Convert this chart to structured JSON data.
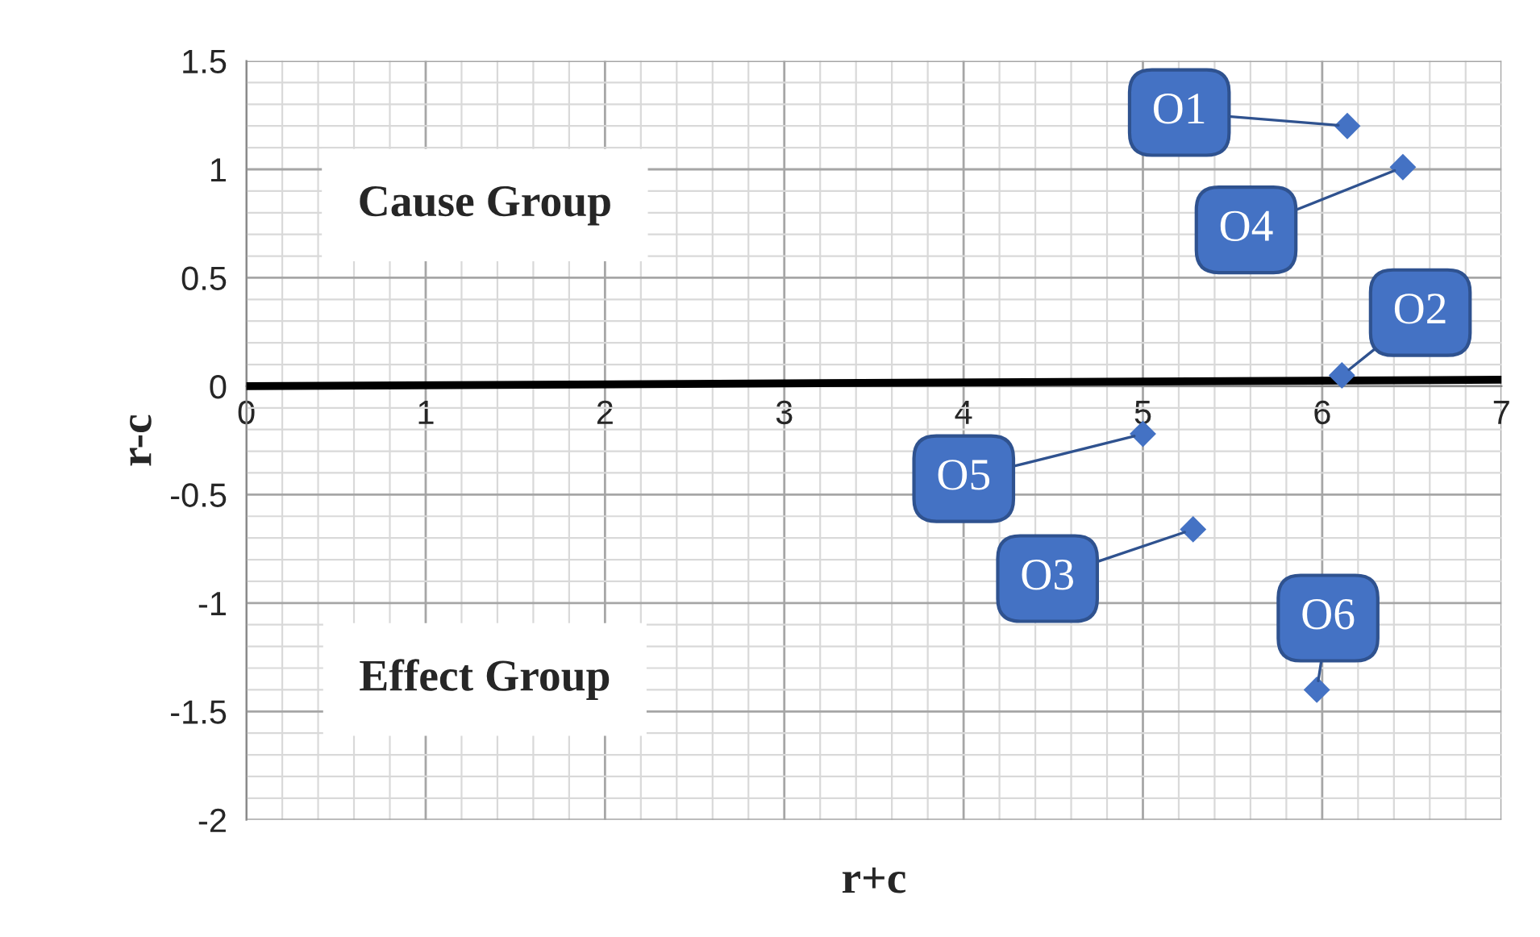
{
  "chart_data": {
    "type": "scatter",
    "xlabel": "r+c",
    "ylabel": "r-c",
    "xlim": [
      0,
      7
    ],
    "ylim": [
      -2,
      1.5
    ],
    "xticks": [
      0,
      1,
      2,
      3,
      4,
      5,
      6,
      7
    ],
    "yticks": [
      -2,
      -1.5,
      -1,
      -0.5,
      0,
      0.5,
      1,
      1.5
    ],
    "grid": true,
    "marker": "diamond",
    "series": [
      {
        "color": "#4472c4",
        "x": [
          6.14,
          6.11,
          5.28,
          6.45,
          5.0,
          5.97
        ],
        "values": [
          1.2,
          0.05,
          -0.66,
          1.01,
          -0.22,
          -1.4
        ]
      },
      {
        "type": "line",
        "color": "#000000",
        "marker": "none",
        "x": [
          0,
          7
        ],
        "values": [
          0,
          0.03
        ]
      }
    ],
    "annotations": [
      {
        "text": "O1",
        "x": 6.14,
        "y": 1.2
      },
      {
        "text": "O2",
        "x": 6.11,
        "y": 0.05
      },
      {
        "text": "O3",
        "x": 5.28,
        "y": -0.66
      },
      {
        "text": "O4",
        "x": 6.45,
        "y": 1.01
      },
      {
        "text": "O5",
        "x": 5.0,
        "y": -0.22
      },
      {
        "text": "O6",
        "x": 5.97,
        "y": -1.4
      },
      "Cause Group",
      "Effect Group"
    ]
  }
}
